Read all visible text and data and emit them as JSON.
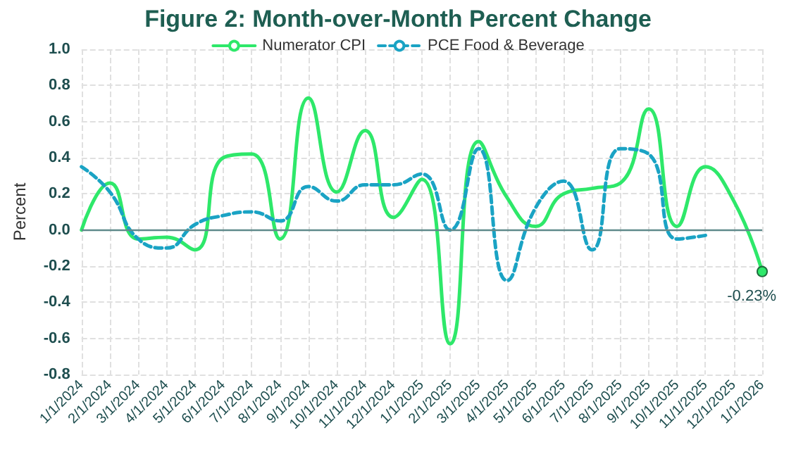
{
  "chart_data": {
    "type": "line",
    "title": "Figure 2: Month-over-Month Percent Change",
    "ylabel": "Percent",
    "categories": [
      "1/1/2024",
      "2/1/2024",
      "3/1/2024",
      "4/1/2024",
      "5/1/2024",
      "6/1/2024",
      "7/1/2024",
      "8/1/2024",
      "9/1/2024",
      "10/1/2024",
      "11/1/2024",
      "12/1/2024",
      "1/1/2025",
      "2/1/2025",
      "3/1/2025",
      "4/1/2025",
      "5/1/2025",
      "6/1/2025",
      "7/1/2025",
      "8/1/2025",
      "9/1/2025",
      "10/1/2025",
      "11/1/2025",
      "12/1/2025",
      "1/1/2026"
    ],
    "series": [
      {
        "name": "Numerator CPI",
        "color": "#2ee86a",
        "line_style": "solid",
        "values": [
          0.0,
          0.26,
          -0.05,
          -0.04,
          -0.11,
          0.4,
          0.42,
          -0.05,
          0.73,
          0.21,
          0.55,
          0.07,
          0.28,
          -0.63,
          0.49,
          0.18,
          0.02,
          0.2,
          0.23,
          0.26,
          0.67,
          0.02,
          0.35,
          0.16,
          -0.23
        ],
        "value_labels": [
          null,
          null,
          null,
          null,
          null,
          null,
          null,
          null,
          null,
          null,
          null,
          null,
          null,
          null,
          null,
          null,
          null,
          null,
          null,
          null,
          null,
          null,
          null,
          null,
          "-0.23%"
        ]
      },
      {
        "name": "PCE Food & Beverage",
        "color": "#1aa3c4",
        "line_style": "dashed",
        "values": [
          0.35,
          0.21,
          -0.05,
          -0.1,
          0.03,
          0.08,
          0.1,
          0.05,
          0.24,
          0.16,
          0.25,
          0.25,
          0.31,
          0.0,
          0.45,
          -0.28,
          0.12,
          0.27,
          -0.11,
          0.45,
          0.42,
          -0.05,
          -0.03,
          null,
          null
        ]
      }
    ],
    "ylim": [
      -0.8,
      1.0
    ],
    "yticks": [
      {
        "value": -0.8,
        "label": "-0.8"
      },
      {
        "value": -0.6,
        "label": "-0.6"
      },
      {
        "value": -0.4,
        "label": "-0.4"
      },
      {
        "value": -0.2,
        "label": "-0.2"
      },
      {
        "value": 0,
        "label": "0.0"
      },
      {
        "value": 0.2,
        "label": "0.2"
      },
      {
        "value": 0.4,
        "label": "0.4"
      },
      {
        "value": 0.6,
        "label": "0.6"
      },
      {
        "value": 0.8,
        "label": "0.8"
      },
      {
        "value": 1.0,
        "label": "1.0"
      }
    ],
    "ref_lines": [
      {
        "axis": "y",
        "value": 0,
        "color": "#5f8a8b"
      }
    ],
    "grid": true,
    "legend": "top"
  }
}
